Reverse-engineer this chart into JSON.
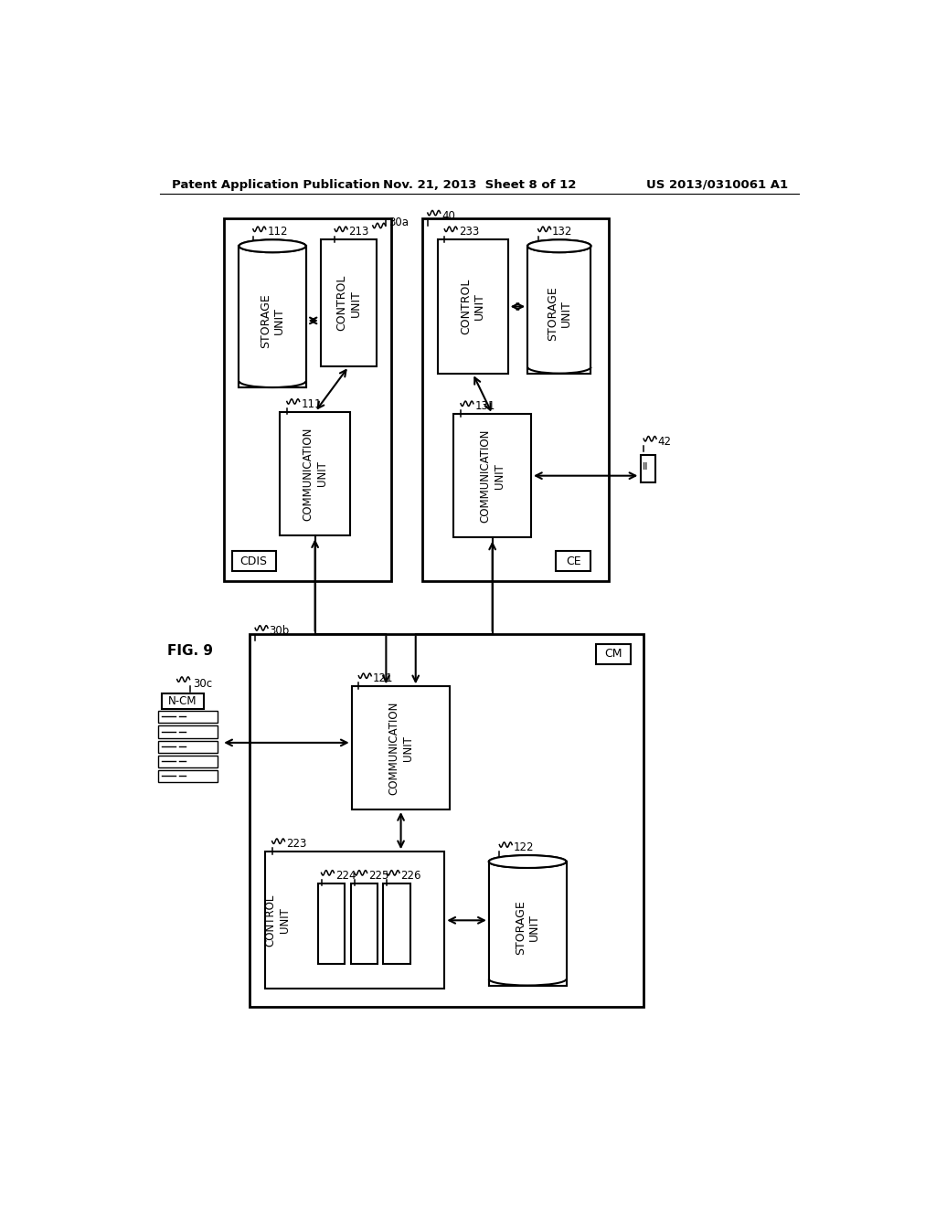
{
  "bg_color": "#ffffff",
  "header_left": "Patent Application Publication",
  "header_center": "Nov. 21, 2013  Sheet 8 of 12",
  "header_right": "US 2013/0310061 A1",
  "fig_label": "FIG. 9"
}
